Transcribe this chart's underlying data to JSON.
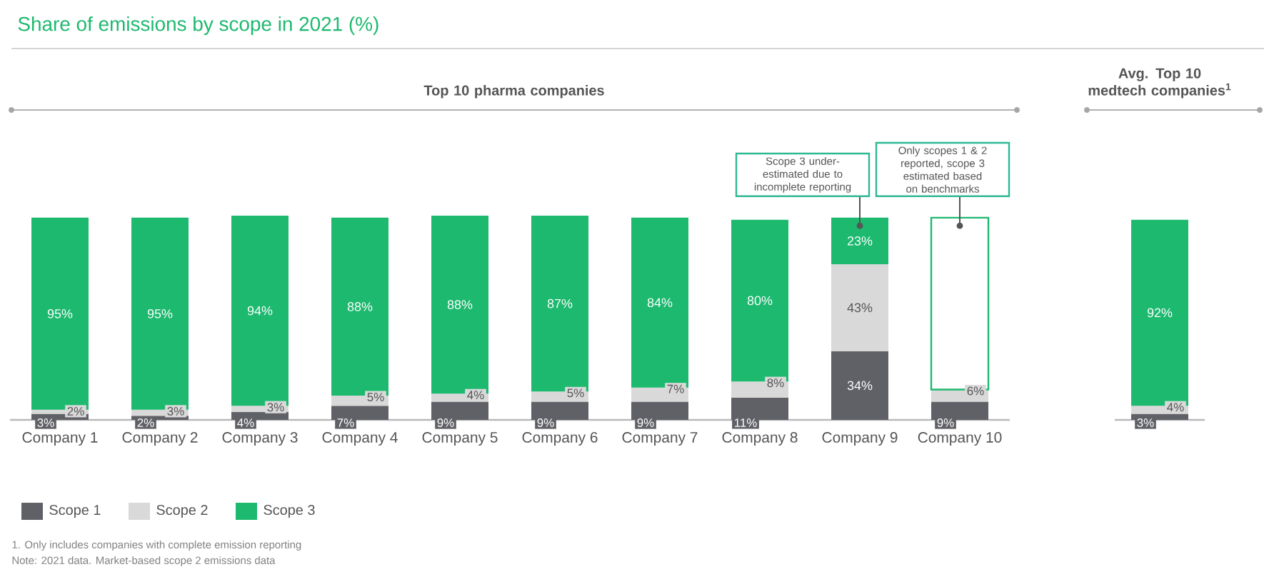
{
  "chart_data": {
    "type": "bar",
    "stacked": true,
    "title": "Share of emissions by scope in 2021 (%)",
    "subtitle": "Top 10 pharma companies",
    "categories": [
      "Company 1",
      "Company 2",
      "Company 3",
      "Company 4",
      "Company 5",
      "Company 6",
      "Company 7",
      "Company 8",
      "Company 9",
      "Company 10",
      null,
      null
    ],
    "ylim": [
      0,
      101
    ],
    "tick_labels": "x",
    "legend": "bottom left",
    "series": [
      {
        "name": "Scope 1",
        "color": "#606167",
        "values": [
          3,
          2,
          4,
          7,
          9,
          9,
          9,
          11,
          34,
          9,
          null,
          3
        ],
        "value_labels": [
          "3%",
          "2%",
          "4%",
          "7%",
          "9%",
          "9%",
          "9%",
          "11%",
          "34%",
          "9%",
          null,
          "3%"
        ]
      },
      {
        "name": "Scope 2",
        "color": "#d9d9d9",
        "values": [
          2,
          3,
          3,
          5,
          4,
          5,
          7,
          8,
          43,
          6,
          null,
          4
        ],
        "value_labels": [
          "2%",
          "3%",
          "3%",
          "5%",
          "4%",
          "5%",
          "7%",
          "8%",
          "43%",
          "6%",
          null,
          "4%"
        ]
      },
      {
        "name": "Scope 3",
        "color": "#1db96f",
        "colors": [
          "#1db96f",
          "#1db96f",
          "#1db96f",
          "#1db96f",
          "#1db96f",
          "#1db96f",
          "#1db96f",
          "#1db96f",
          "#1db96f",
          "#ffffff",
          "#1db96f",
          "#1db96f"
        ],
        "values": [
          95,
          95,
          94,
          88,
          88,
          87,
          84,
          80,
          23,
          85,
          null,
          92
        ],
        "value_labels": [
          "95%",
          "95%",
          "94%",
          "88%",
          "88%",
          "87%",
          "84%",
          "80%",
          "23%",
          null,
          null,
          "92%"
        ]
      }
    ],
    "annotations": [
      {
        "text": "Scope 3 under-estimated due to incomplete reporting",
        "x": "Company 9",
        "y": 96
      },
      {
        "text": "Only scopes 1 & 2 reported, scope 3 estimated based on benchmarks",
        "x": "Company 10",
        "y": 96
      },
      "Avg. Top 10 medtech companies$^{1}$",
      "1. Only includes companies with complete emission reporting",
      "Note: 2021 data. Market-based scope 2 emissions data"
    ]
  }
}
